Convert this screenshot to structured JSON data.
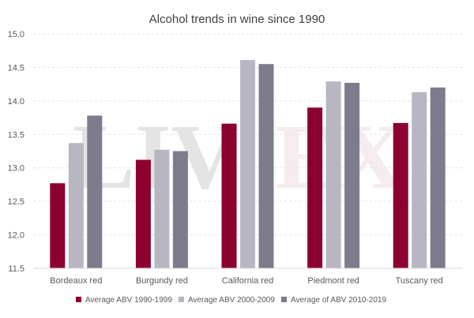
{
  "chart_data": {
    "type": "bar",
    "title": "Alcohol trends in wine since 1990",
    "xlabel": "",
    "ylabel": "",
    "ylim": [
      11.5,
      15.0
    ],
    "yticks": [
      "11.5",
      "12.0",
      "12.5",
      "13.0",
      "13.5",
      "14.0",
      "14.5",
      "15.0"
    ],
    "grid": true,
    "legend_position": "bottom",
    "categories": [
      "Bordeaux red",
      "Burgundy red",
      "California red",
      "Piedmont red",
      "Tuscany red"
    ],
    "series": [
      {
        "name": "Average ABV 1990-1999",
        "color": "#8b0031",
        "values": [
          12.77,
          13.12,
          13.66,
          13.9,
          13.67
        ]
      },
      {
        "name": "Average ABV 2000-2009",
        "color": "#b8b6c2",
        "values": [
          13.37,
          13.27,
          14.61,
          14.29,
          14.13
        ]
      },
      {
        "name": "Average of ABV 2010-2019",
        "color": "#7d7b8c",
        "values": [
          13.78,
          13.25,
          14.55,
          14.27,
          14.2
        ]
      }
    ],
    "watermark": {
      "left": "LIV",
      "right": "EX"
    }
  }
}
